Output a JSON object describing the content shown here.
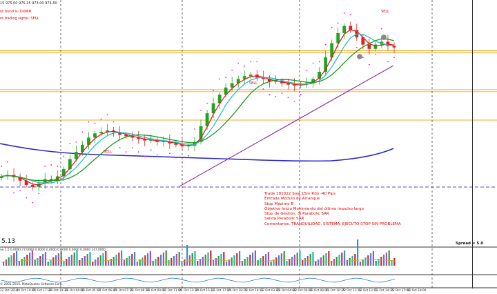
{
  "chart_header": {
    "ohlc_line": "15  975.00 975.25 973.00 974.50",
    "trend_text": "nt trend is: DOWN",
    "signal_text": "nt trading signal: SELL"
  },
  "sell_labels": [
    "SELL",
    "SELL",
    "SELL"
  ],
  "notes": [
    "Trade 181022 Soja 15m Rdo -40 Pips",
    "Entrada Módulo de Arranque",
    "Stop Máximo B",
    "Objetivo Inicio Movimiento del último impulso largo",
    "Stop de Gestión. Si Parabolic SAR",
    "Salida Parabolic SAR",
    "Comentarios. TRANQUILIDAD. SISTEMA. EJECUTO STOP SIN PROBLEMA"
  ],
  "price_fragment": "5.13",
  "spread_text": "Spread = 5.0",
  "volume_header": "ne 1.5  0.0000 77.0000 0.0000 0.0000 0.0000 0.0000 0.0000 147.0000",
  "copyright": "© 2001-2015, MetaQuotes Software Corp.",
  "time_axis": [
    "22 Oct 2018",
    "20 Oct 14:45",
    "20 Oct 17:30",
    "20 Oct 19:30",
    "21 Oct 04:00",
    "21 Oct 05:15",
    "21 Oct 06:00",
    "21 Oct 07:15",
    "21 Oct 08:30",
    "21 Oct 09:45",
    "21 Oct 11:00",
    "21 Oct 13:30",
    "21 Oct 15:15",
    "21 Oct 17:00",
    "21 Oct 18:15",
    "21 Oct 19:15",
    "22 Oct 03:00",
    "22 Oct 04:00",
    "22 Oct 06:00",
    "22 Oct 08:00",
    "22 Oct 10:15",
    "22 Oct 11:15",
    "22 Oct 13:15",
    "22 Oct 14:15",
    "22 Oct 17:00",
    "22 Oct 19:00"
  ],
  "colors": {
    "bull_candle": "#22a422",
    "bear_candle": "#e02020",
    "fast_ma": "#e02020",
    "medium_ma": "#22c0d0",
    "slow_ma": "#1a9a1a",
    "long_ma": "#2a2acc",
    "trendline": "#8e2a9e",
    "sar": "#ff00ff",
    "level_orange": "#f5a623",
    "level_blue": "#4a4acc"
  },
  "chart_data": {
    "type": "candlestick",
    "closes": [
      975.5,
      976.0,
      975.2,
      974.0,
      972.5,
      971.8,
      973.0,
      974.5,
      974.0,
      975.5,
      978.0,
      981.5,
      984.0,
      986.5,
      989.0,
      990.5,
      991.0,
      991.5,
      991.0,
      990.0,
      989.5,
      989.0,
      988.5,
      988.0,
      988.2,
      987.5,
      987.8,
      987.0,
      986.5,
      986.0,
      986.2,
      987.5,
      993.0,
      997.5,
      1001.0,
      1004.0,
      1006.5,
      1008.0,
      1009.5,
      1010.5,
      1011.0,
      1010.0,
      1009.5,
      1008.5,
      1008.8,
      1008.0,
      1007.5,
      1007.2,
      1007.5,
      1008.0,
      1009.5,
      1012.0,
      1017.0,
      1022.0,
      1025.5,
      1028.0,
      1026.5,
      1024.0,
      1021.5,
      1020.0,
      1021.5,
      1022.5,
      1021.0,
      1020.5
    ]
  }
}
